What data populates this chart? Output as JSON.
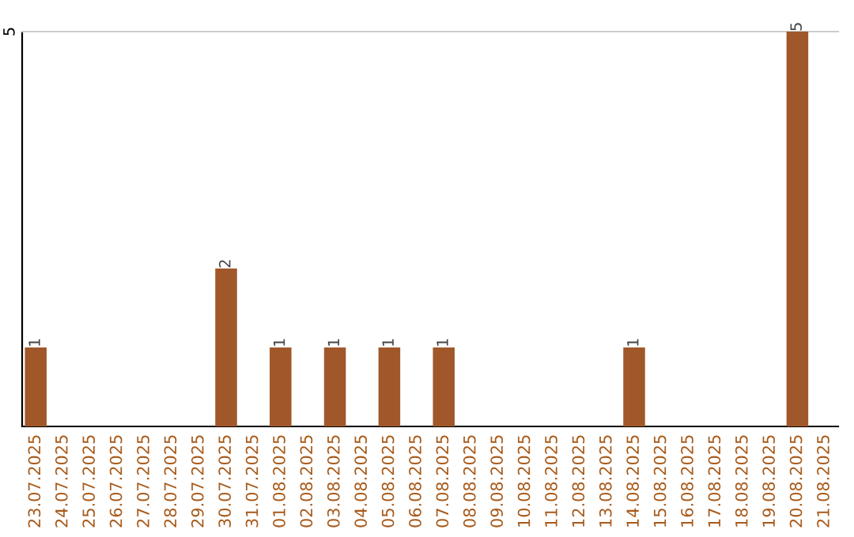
{
  "chart_data": {
    "type": "bar",
    "categories": [
      "23.07.2025",
      "24.07.2025",
      "25.07.2025",
      "26.07.2025",
      "27.07.2025",
      "28.07.2025",
      "29.07.2025",
      "30.07.2025",
      "31.07.2025",
      "01.08.2025",
      "02.08.2025",
      "03.08.2025",
      "04.08.2025",
      "05.08.2025",
      "06.08.2025",
      "07.08.2025",
      "08.08.2025",
      "09.08.2025",
      "10.08.2025",
      "11.08.2025",
      "12.08.2025",
      "13.08.2025",
      "14.08.2025",
      "15.08.2025",
      "16.08.2025",
      "17.08.2025",
      "18.08.2025",
      "19.08.2025",
      "20.08.2025",
      "21.08.2025"
    ],
    "values": [
      1,
      0,
      0,
      0,
      0,
      0,
      0,
      2,
      0,
      1,
      0,
      1,
      0,
      1,
      0,
      1,
      0,
      0,
      0,
      0,
      0,
      0,
      1,
      0,
      0,
      0,
      0,
      0,
      5,
      0
    ],
    "value_labels": [
      "1",
      null,
      null,
      null,
      null,
      null,
      null,
      "2",
      null,
      "1",
      null,
      "1",
      null,
      "1",
      null,
      "1",
      null,
      null,
      null,
      null,
      null,
      null,
      "1",
      null,
      null,
      null,
      null,
      null,
      "5",
      null
    ],
    "color": "#a0582a",
    "ylim": [
      0,
      5
    ],
    "yticks": [
      5
    ]
  }
}
